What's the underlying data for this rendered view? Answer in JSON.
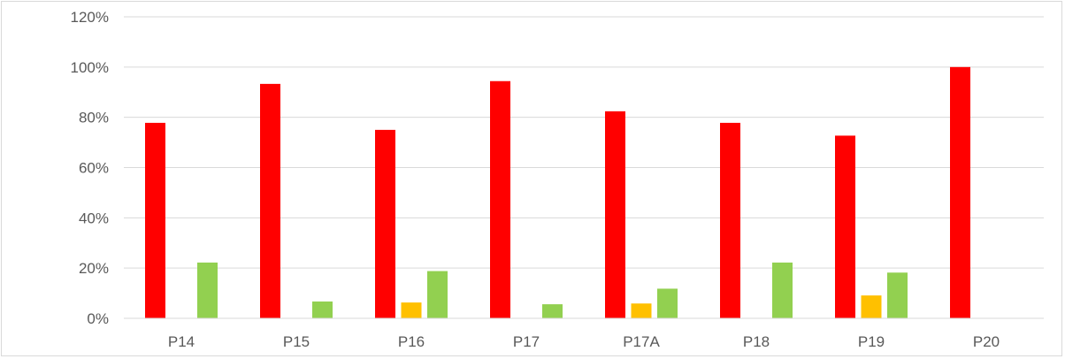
{
  "chart_data": {
    "type": "bar",
    "title": "",
    "xlabel": "",
    "ylabel": "",
    "ylim": [
      0,
      120
    ],
    "y_tick_step": 20,
    "y_tick_format": "percent",
    "grid": "horizontal",
    "legend": "none",
    "categories": [
      "P14",
      "P15",
      "P16",
      "P17",
      "P17A",
      "P18",
      "P19",
      "P20"
    ],
    "series": [
      {
        "color": "#ff0000",
        "values": [
          77.8,
          93.3,
          75.0,
          94.4,
          82.4,
          77.8,
          72.7,
          100.0
        ]
      },
      {
        "color": "#ffc000",
        "values": [
          0,
          0,
          6.3,
          0,
          5.9,
          0,
          9.1,
          0
        ]
      },
      {
        "color": "#92d050",
        "values": [
          22.2,
          6.7,
          18.8,
          5.6,
          11.8,
          22.2,
          18.2,
          0
        ]
      }
    ]
  }
}
